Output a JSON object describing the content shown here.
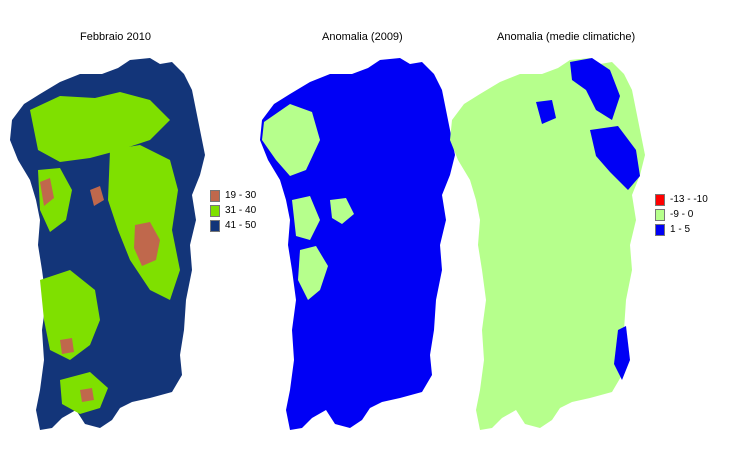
{
  "panels": [
    {
      "title": "Febbraio 2010",
      "base_color": "#133579",
      "legend": [
        {
          "label": "19 - 30",
          "color": "#c0684c"
        },
        {
          "label": "31 - 40",
          "color": "#7fe000"
        },
        {
          "label": "41 - 50",
          "color": "#133579"
        }
      ]
    },
    {
      "title": "Anomalia (2009)",
      "base_color": "#0000f5",
      "legend": []
    },
    {
      "title": "Anomalia (medie climatiche)",
      "base_color": "#b6ff8c",
      "legend": [
        {
          "label": "-13 - -10",
          "color": "#ff0000"
        },
        {
          "label": "-9 - 0",
          "color": "#b6ff8c"
        },
        {
          "label": "1 - 5",
          "color": "#0000f5"
        }
      ]
    }
  ]
}
